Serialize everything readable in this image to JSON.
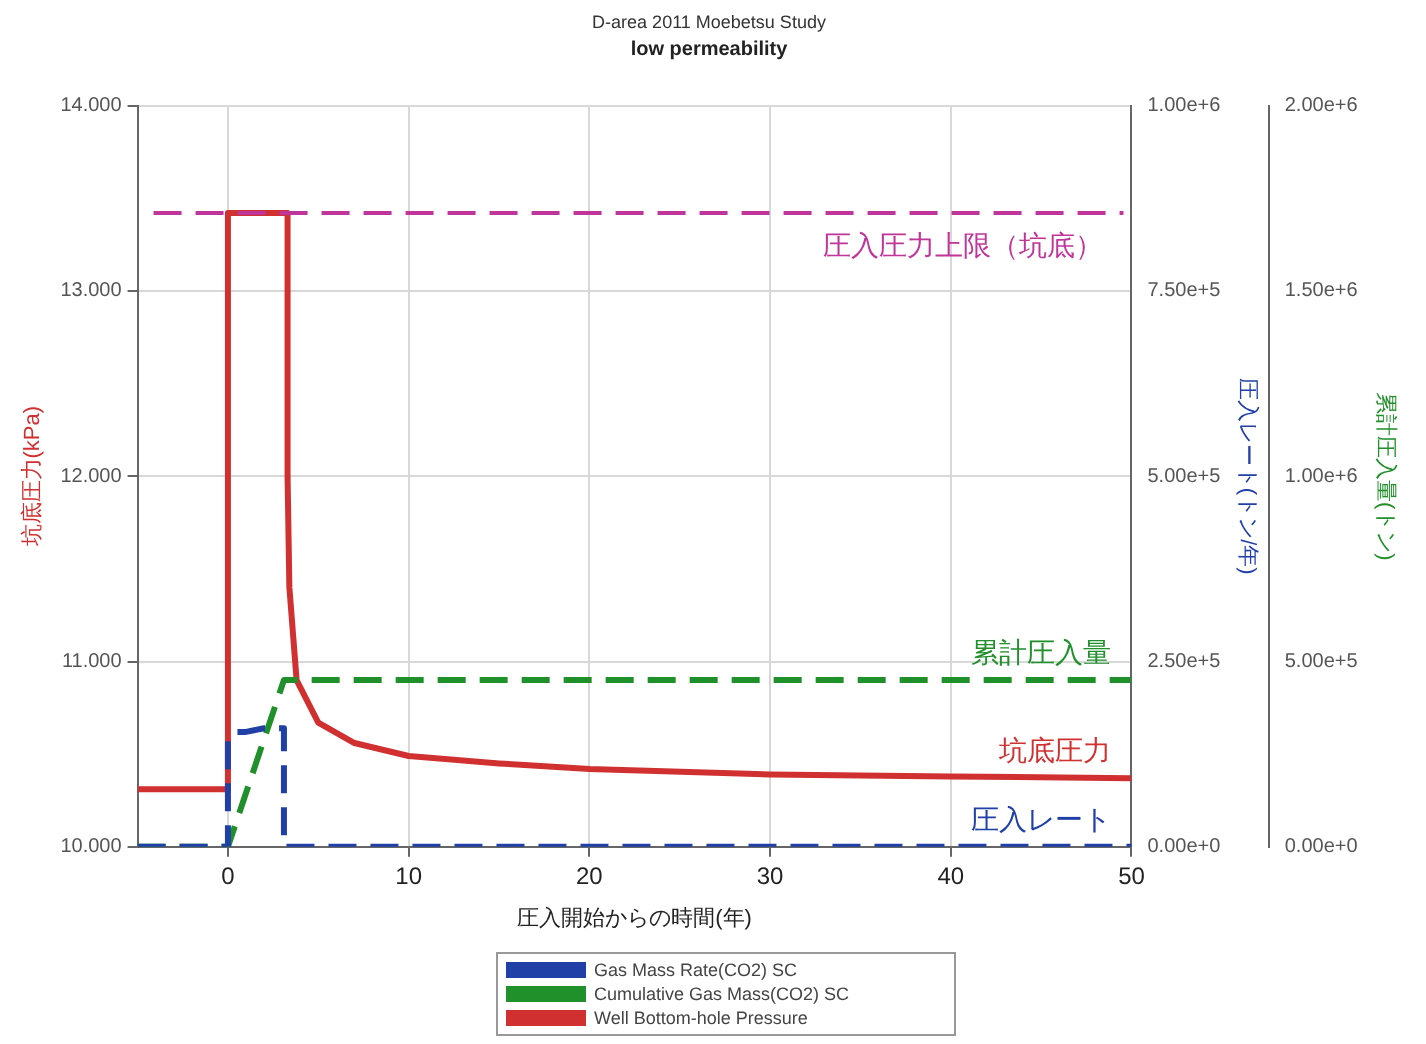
{
  "chart_data": {
    "type": "line",
    "title": "D-area 2011 Moebetsu Study",
    "subtitle": "low permeability",
    "xlabel": "圧入開始からの時間(年)",
    "ylabel": "坑底圧力(kPa)",
    "y2label": "圧入レート(トン/年)",
    "y3label": "累計圧入量(トン)",
    "xlim": [
      -5,
      50
    ],
    "xticks": [
      0,
      10,
      20,
      30,
      40,
      50
    ],
    "ylim": [
      10,
      14
    ],
    "yticks": [
      {
        "value": 10,
        "label": "10.000"
      },
      {
        "value": 11,
        "label": "11.000"
      },
      {
        "value": 12,
        "label": "12.000"
      },
      {
        "value": 13,
        "label": "13.000"
      },
      {
        "value": 14,
        "label": "14.000"
      }
    ],
    "y2lim": [
      0,
      1000000
    ],
    "y2ticks": [
      {
        "value": 0,
        "label": "0.00e+0"
      },
      {
        "value": 250000,
        "label": "2.50e+5"
      },
      {
        "value": 500000,
        "label": "5.00e+5"
      },
      {
        "value": 750000,
        "label": "7.50e+5"
      },
      {
        "value": 1000000,
        "label": "1.00e+6"
      }
    ],
    "y3lim": [
      0,
      2000000
    ],
    "y3ticks": [
      {
        "value": 0,
        "label": "0.00e+0"
      },
      {
        "value": 500000,
        "label": "5.00e+5"
      },
      {
        "value": 1000000,
        "label": "1.00e+6"
      },
      {
        "value": 1500000,
        "label": "1.50e+6"
      },
      {
        "value": 2000000,
        "label": "2.00e+6"
      }
    ],
    "grid": true,
    "legend": "bottom",
    "marker": "none",
    "series": [
      {
        "name": "Gas Mass Rate(CO2) SC",
        "color": "#2040a8",
        "axis": "y2",
        "line_style": "dashed",
        "x": [
          -5,
          0,
          0,
          0.5,
          1,
          2,
          3.1,
          3.1,
          50
        ],
        "values": [
          0,
          0,
          145000,
          155000,
          155000,
          160000,
          160000,
          0,
          0
        ]
      },
      {
        "name": "Cumulative Gas Mass(CO2) SC",
        "color": "#20902a",
        "axis": "y3",
        "line_style": "dashed",
        "x": [
          -5,
          0,
          3.1,
          50
        ],
        "values": [
          0,
          0,
          450000,
          450000
        ]
      },
      {
        "name": "Well Bottom-hole Pressure",
        "color": "#d03030",
        "axis": "y",
        "line_style": "solid",
        "x": [
          -5,
          0,
          0,
          3.3,
          3.3,
          3.4,
          3.8,
          5,
          7,
          10,
          15,
          20,
          30,
          40,
          50
        ],
        "values": [
          10.31,
          10.31,
          13.42,
          13.42,
          12.0,
          11.4,
          10.9,
          10.67,
          10.56,
          10.49,
          10.45,
          10.42,
          10.39,
          10.38,
          10.37
        ]
      }
    ],
    "ref_lines": [
      {
        "axis": "y",
        "value": 13.42,
        "label": "圧入圧力上限（坑底）",
        "color": "#c0359a",
        "line_style": "dashed"
      }
    ],
    "annotations": [
      "圧入レート",
      "累計圧入量",
      "坑底圧力"
    ]
  }
}
